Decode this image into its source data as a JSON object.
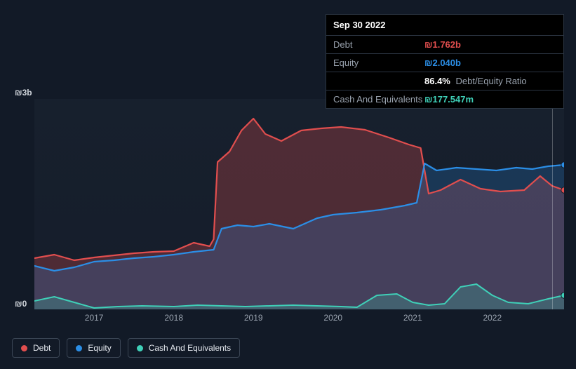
{
  "tooltip": {
    "date": "Sep 30 2022",
    "rows": {
      "debt": {
        "label": "Debt",
        "value": "₪1.762b"
      },
      "equity": {
        "label": "Equity",
        "value": "₪2.040b"
      },
      "ratio": {
        "label": "",
        "value": "86.4%",
        "suffix": "Debt/Equity Ratio"
      },
      "cash": {
        "label": "Cash And Equivalents",
        "value": "₪177.547m"
      }
    }
  },
  "chart": {
    "type": "area-line",
    "background_color": "#121a27",
    "plot_bg_from": "rgba(35,45,60,0.3)",
    "plot_bg_to": "rgba(25,33,46,0.5)",
    "y_axis": {
      "min": 0,
      "max": 3,
      "unit_prefix": "₪",
      "unit_suffix": "b",
      "top_label": "₪3b",
      "bottom_label": "₪0"
    },
    "x_axis": {
      "min": 2016.25,
      "max": 2022.9,
      "ticks": [
        2017,
        2018,
        2019,
        2020,
        2021,
        2022
      ]
    },
    "cursor_x": 2022.75,
    "series": {
      "debt": {
        "label": "Debt",
        "color": "#e14e4e",
        "fill": "rgba(225,78,78,0.28)",
        "line_width": 2.2,
        "data": [
          [
            2016.25,
            0.73
          ],
          [
            2016.5,
            0.78
          ],
          [
            2016.75,
            0.7
          ],
          [
            2017.0,
            0.74
          ],
          [
            2017.25,
            0.77
          ],
          [
            2017.5,
            0.8
          ],
          [
            2017.75,
            0.82
          ],
          [
            2018.0,
            0.83
          ],
          [
            2018.25,
            0.95
          ],
          [
            2018.45,
            0.9
          ],
          [
            2018.5,
            1.0
          ],
          [
            2018.55,
            2.1
          ],
          [
            2018.7,
            2.25
          ],
          [
            2018.85,
            2.55
          ],
          [
            2019.0,
            2.72
          ],
          [
            2019.15,
            2.5
          ],
          [
            2019.35,
            2.4
          ],
          [
            2019.6,
            2.55
          ],
          [
            2019.85,
            2.58
          ],
          [
            2020.1,
            2.6
          ],
          [
            2020.4,
            2.56
          ],
          [
            2020.7,
            2.45
          ],
          [
            2020.95,
            2.35
          ],
          [
            2021.1,
            2.3
          ],
          [
            2021.2,
            1.65
          ],
          [
            2021.35,
            1.7
          ],
          [
            2021.6,
            1.85
          ],
          [
            2021.85,
            1.72
          ],
          [
            2022.1,
            1.68
          ],
          [
            2022.4,
            1.7
          ],
          [
            2022.6,
            1.9
          ],
          [
            2022.75,
            1.76
          ],
          [
            2022.9,
            1.7
          ]
        ]
      },
      "equity": {
        "label": "Equity",
        "color": "#2b8ee6",
        "fill": "rgba(43,142,230,0.22)",
        "line_width": 2.2,
        "data": [
          [
            2016.25,
            0.62
          ],
          [
            2016.5,
            0.55
          ],
          [
            2016.75,
            0.6
          ],
          [
            2017.0,
            0.68
          ],
          [
            2017.25,
            0.7
          ],
          [
            2017.5,
            0.73
          ],
          [
            2017.75,
            0.75
          ],
          [
            2018.0,
            0.78
          ],
          [
            2018.25,
            0.82
          ],
          [
            2018.5,
            0.85
          ],
          [
            2018.6,
            1.15
          ],
          [
            2018.8,
            1.2
          ],
          [
            2019.0,
            1.18
          ],
          [
            2019.2,
            1.22
          ],
          [
            2019.5,
            1.15
          ],
          [
            2019.8,
            1.3
          ],
          [
            2020.0,
            1.35
          ],
          [
            2020.3,
            1.38
          ],
          [
            2020.6,
            1.42
          ],
          [
            2020.9,
            1.48
          ],
          [
            2021.05,
            1.52
          ],
          [
            2021.15,
            2.08
          ],
          [
            2021.3,
            1.98
          ],
          [
            2021.55,
            2.02
          ],
          [
            2021.8,
            2.0
          ],
          [
            2022.05,
            1.98
          ],
          [
            2022.3,
            2.02
          ],
          [
            2022.5,
            2.0
          ],
          [
            2022.7,
            2.04
          ],
          [
            2022.9,
            2.06
          ]
        ]
      },
      "cash": {
        "label": "Cash And Equivalents",
        "color": "#3fd0b8",
        "fill": "rgba(63,208,184,0.22)",
        "line_width": 2.0,
        "data": [
          [
            2016.25,
            0.12
          ],
          [
            2016.5,
            0.18
          ],
          [
            2016.75,
            0.1
          ],
          [
            2017.0,
            0.02
          ],
          [
            2017.3,
            0.04
          ],
          [
            2017.6,
            0.05
          ],
          [
            2018.0,
            0.04
          ],
          [
            2018.3,
            0.06
          ],
          [
            2018.6,
            0.05
          ],
          [
            2018.9,
            0.04
          ],
          [
            2019.2,
            0.05
          ],
          [
            2019.5,
            0.06
          ],
          [
            2019.8,
            0.05
          ],
          [
            2020.1,
            0.04
          ],
          [
            2020.3,
            0.03
          ],
          [
            2020.55,
            0.2
          ],
          [
            2020.8,
            0.22
          ],
          [
            2021.0,
            0.1
          ],
          [
            2021.2,
            0.06
          ],
          [
            2021.4,
            0.08
          ],
          [
            2021.6,
            0.32
          ],
          [
            2021.8,
            0.36
          ],
          [
            2022.0,
            0.2
          ],
          [
            2022.2,
            0.1
          ],
          [
            2022.45,
            0.08
          ],
          [
            2022.7,
            0.15
          ],
          [
            2022.9,
            0.2
          ]
        ]
      }
    },
    "end_markers": [
      {
        "series": "equity",
        "x": 2022.9,
        "y": 2.06
      },
      {
        "series": "debt",
        "x": 2022.9,
        "y": 1.7
      },
      {
        "series": "cash",
        "x": 2022.9,
        "y": 0.2
      }
    ]
  },
  "legend": {
    "items": [
      {
        "key": "debt",
        "label": "Debt"
      },
      {
        "key": "equity",
        "label": "Equity"
      },
      {
        "key": "cash",
        "label": "Cash And Equivalents"
      }
    ]
  }
}
